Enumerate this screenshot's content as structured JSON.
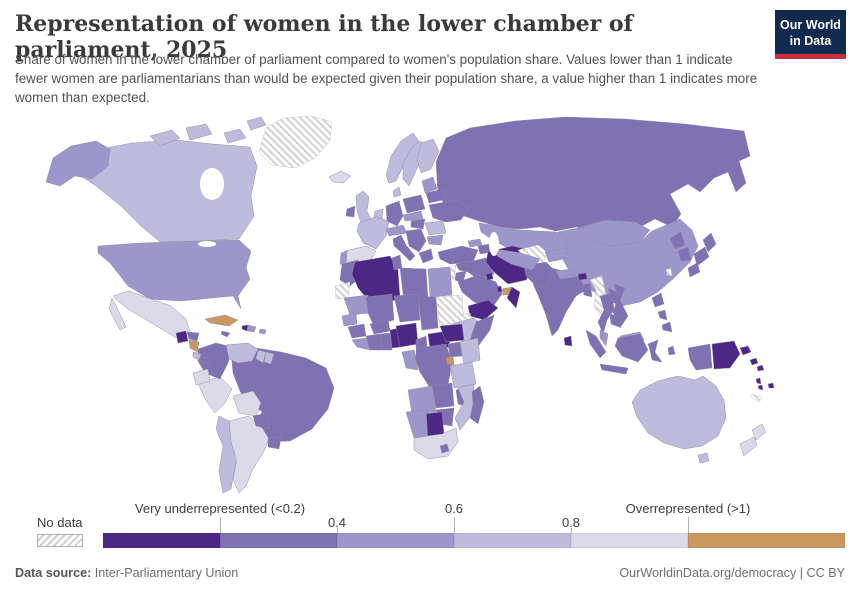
{
  "header": {
    "title": "Representation of women in the lower chamber of parliament, 2025",
    "subtitle": "Share of women in the lower chamber of parliament compared to women's population share. Values lower than 1 indicate fewer women are parliamentarians than would be expected given their population share, a value higher than 1 indicates more women than expected.",
    "logo": {
      "line1": "Our World",
      "line2": "in Data",
      "bg_color": "#122a4e",
      "accent_color": "#c5313f"
    }
  },
  "legend": {
    "no_data_label": "No data",
    "bins": [
      {
        "range": "<0.2",
        "color": "#4c2786",
        "tick_label": "Very underrepresented (<0.2)",
        "tick_row": "top"
      },
      {
        "range": "0.2-0.4",
        "color": "#8071b3",
        "tick_label": "0.4",
        "tick_row": "bottom"
      },
      {
        "range": "0.4-0.6",
        "color": "#9d96ca",
        "tick_label": "0.6",
        "tick_row": "top"
      },
      {
        "range": "0.6-0.8",
        "color": "#bebbdd",
        "tick_label": "0.8",
        "tick_row": "bottom"
      },
      {
        "range": "0.8-1",
        "color": "#dcdae9",
        "tick_label": "Overrepresented (>1)",
        "tick_row": "top"
      },
      {
        "range": ">1",
        "color": "#ca9760",
        "tick_label": null,
        "tick_row": null
      }
    ]
  },
  "footer": {
    "source_label": "Data source:",
    "source_value": "Inter-Parliamentary Union",
    "attribution": "OurWorldinData.org/democracy | CC BY"
  },
  "map": {
    "regions": {
      "Russia": "0.2-0.4",
      "Canada": "0.6-0.8",
      "Greenland": "no-data",
      "United States": "0.4-0.6",
      "Mexico": "0.8-1",
      "Brazil": "0.2-0.4",
      "Argentina": "0.8-1",
      "China": "0.4-0.6",
      "Australia": "0.6-0.8",
      "Kazakhstan": "0.4-0.6",
      "India": "0.2-0.4",
      "Chile": "0.6-0.8",
      "Peru": "0.8-1",
      "Bolivia": "0.8-1",
      "Colombia": "0.2-0.4",
      "Venezuela": "0.6-0.8",
      "Ecuador": "0.8-1",
      "Guyana": "0.6-0.8",
      "Suriname": "0.6-0.8",
      "Paraguay": "0.2-0.4",
      "Uruguay": "0.2-0.4",
      "Guatemala": "<0.2",
      "Honduras": "0.2-0.4",
      "Nicaragua": ">1",
      "Costa Rica": "0.6-0.8",
      "Panama": "0.2-0.4",
      "Cuba": ">1",
      "Jamaica": "0.2-0.4",
      "Haiti": "<0.2",
      "Dominican Republic": "0.4-0.6",
      "Puerto Rico": "0.4-0.6",
      "Iceland": "0.8-1",
      "Norway": "0.6-0.8",
      "Sweden": "0.6-0.8",
      "Finland": "0.6-0.8",
      "Denmark": "0.6-0.8",
      "United Kingdom": "0.6-0.8",
      "Ireland": "0.2-0.4",
      "Netherlands": "0.6-0.8",
      "France": "0.6-0.8",
      "Spain": "0.8-1",
      "Portugal": "0.4-0.6",
      "Germany": "0.2-0.4",
      "Poland": "0.2-0.4",
      "Czechia": "0.4-0.6",
      "Austria": "0.4-0.6",
      "Italy": "0.2-0.4",
      "Hungary": "0.2-0.4",
      "Serbia": "0.2-0.4",
      "Greece": "0.2-0.4",
      "Romania": "0.6-0.8",
      "Bulgaria": "0.4-0.6",
      "Lithuania": "0.4-0.6",
      "Belarus": "0.2-0.4",
      "Ukraine": "0.2-0.4",
      "Georgia": "0.4-0.6",
      "Azerbaijan": "0.2-0.4",
      "Turkey": "0.2-0.4",
      "Syria": "0.2-0.4",
      "Lebanon": "no-data",
      "Jordan": "0.2-0.4",
      "Iraq": "0.2-0.4",
      "Iran": "<0.2",
      "Afghanistan": "no-data",
      "Pakistan": "0.2-0.4",
      "Saudi Arabia": "0.2-0.4",
      "Kuwait": "<0.2",
      "Qatar": "<0.2",
      "United Arab Emirates": ">1",
      "Oman": "<0.2",
      "Yemen": "<0.2",
      "Uzbekistan": "0.4-0.6",
      "Kyrgyzstan": "0.4-0.6",
      "Mongolia": "0.4-0.6",
      "Nepal": "0.4-0.6",
      "Bhutan": "<0.2",
      "Bangladesh": "0.2-0.4",
      "Sri Lanka": "<0.2",
      "Myanmar": "no-data",
      "Thailand": "0.2-0.4",
      "Laos": "0.2-0.4",
      "Vietnam": "0.2-0.4",
      "Cambodia": "0.2-0.4",
      "North Korea": "0.2-0.4",
      "South Korea": "0.2-0.4",
      "Japan": "0.2-0.4",
      "Taiwan": "no-data",
      "Philippines": "0.2-0.4",
      "Malaysia": "0.4-0.6",
      "Indonesia": "0.2-0.4",
      "Papua New Guinea": "<0.2",
      "Solomon Islands": "<0.2",
      "Vanuatu": "<0.2",
      "Fiji": "<0.2",
      "New Caledonia": "no-data",
      "New Zealand": "0.8-1",
      "Morocco": "0.2-0.4",
      "Algeria": "<0.2",
      "Tunisia": "0.2-0.4",
      "Libya": "0.2-0.4",
      "Egypt": "0.4-0.6",
      "Western Sahara": "no-data",
      "Mauritania": "0.4-0.6",
      "Mali": "0.2-0.4",
      "Niger": "0.2-0.4",
      "Chad": "0.2-0.4",
      "Sudan": "no-data",
      "Eritrea": "no-data",
      "Ethiopia": "0.6-0.8",
      "Somalia": "0.2-0.4",
      "Senegal": "0.4-0.6",
      "Guinea": "0.2-0.4",
      "Sierra Leone": "0.4-0.6",
      "Cote d'Ivoire": "0.2-0.4",
      "Ghana": "0.2-0.4",
      "Benin": "<0.2",
      "Burkina Faso": "0.2-0.4",
      "Nigeria": "<0.2",
      "Cameroon": "0.2-0.4",
      "Central African Republic": "<0.2",
      "South Sudan": "<0.2",
      "Gabon": "0.4-0.6",
      "DR Congo": "0.2-0.4",
      "Uganda": "0.2-0.4",
      "Kenya": "0.6-0.8",
      "Rwanda": ">1",
      "Tanzania": "0.6-0.8",
      "Angola": "0.4-0.6",
      "Zambia": "0.2-0.4",
      "Malawi": "0.2-0.4",
      "Mozambique": "0.6-0.8",
      "Zimbabwe": "0.2-0.4",
      "Botswana": "<0.2",
      "Namibia": "0.4-0.6",
      "South Africa": "0.8-1",
      "Lesotho": "0.2-0.4",
      "Madagascar": "0.2-0.4"
    }
  }
}
